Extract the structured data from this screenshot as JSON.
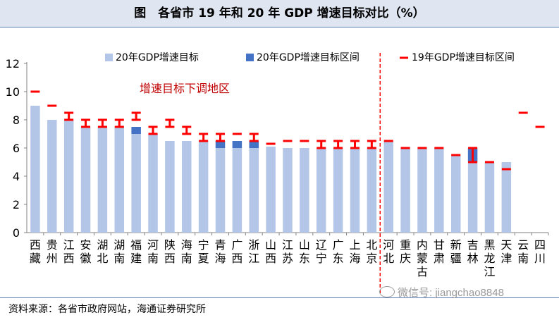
{
  "title": "图　各省市 19 年和 20 年 GDP 增速目标对比（%）",
  "source": "资料来源：各省市政府网站，海通证券研究所",
  "watermark": "微信号: jiangchao8848",
  "colors": {
    "bar": "#b4c6e7",
    "range20": "#4472c4",
    "range19": "#ff0000",
    "annot": "#c00000",
    "axis": "#808080"
  },
  "chart_data": {
    "type": "bar",
    "ylim": [
      0,
      12
    ],
    "yticks": [
      0,
      2,
      4,
      6,
      8,
      10,
      12
    ],
    "legend": [
      "20年GDP增速目标",
      "20年GDP增速目标区间",
      "19年GDP增速目标区间"
    ],
    "annotation": "增速目标下调地区",
    "categories": [
      {
        "name": "西藏",
        "chars": [
          "西",
          "藏"
        ],
        "target20": 9,
        "range20": null,
        "range19": [
          10,
          10
        ]
      },
      {
        "name": "贵州",
        "chars": [
          "贵",
          "州"
        ],
        "target20": 8,
        "range20": null,
        "range19": [
          9,
          9
        ]
      },
      {
        "name": "江西",
        "chars": [
          "江",
          "西"
        ],
        "target20": 8,
        "range20": null,
        "range19": [
          8,
          8.5
        ]
      },
      {
        "name": "安徽",
        "chars": [
          "安",
          "徽"
        ],
        "target20": 7.5,
        "range20": null,
        "range19": [
          7.5,
          8
        ]
      },
      {
        "name": "湖北",
        "chars": [
          "湖",
          "北"
        ],
        "target20": 7.5,
        "range20": null,
        "range19": [
          7.5,
          8
        ]
      },
      {
        "name": "湖南",
        "chars": [
          "湖",
          "南"
        ],
        "target20": 7.5,
        "range20": null,
        "range19": [
          7.5,
          8
        ]
      },
      {
        "name": "福建",
        "chars": [
          "福",
          "建"
        ],
        "target20": 7,
        "range20": [
          7,
          7.5
        ],
        "range19": [
          8,
          8.5
        ]
      },
      {
        "name": "河南",
        "chars": [
          "河",
          "南"
        ],
        "target20": 7,
        "range20": null,
        "range19": [
          7,
          7.5
        ]
      },
      {
        "name": "陕西",
        "chars": [
          "陕",
          "西"
        ],
        "target20": 6.5,
        "range20": null,
        "range19": [
          7.5,
          8
        ]
      },
      {
        "name": "海南",
        "chars": [
          "海",
          "南"
        ],
        "target20": 6.5,
        "range20": null,
        "range19": [
          7,
          7.5
        ]
      },
      {
        "name": "宁夏",
        "chars": [
          "宁",
          "夏"
        ],
        "target20": 6.5,
        "range20": null,
        "range19": [
          6.5,
          7
        ]
      },
      {
        "name": "青海",
        "chars": [
          "青",
          "海"
        ],
        "target20": 6,
        "range20": [
          6,
          6.5
        ],
        "range19": [
          6.5,
          7
        ]
      },
      {
        "name": "广西",
        "chars": [
          "广",
          "西"
        ],
        "target20": 6,
        "range20": [
          6,
          6.5
        ],
        "range19": [
          7,
          7
        ]
      },
      {
        "name": "浙江",
        "chars": [
          "浙",
          "江"
        ],
        "target20": 6,
        "range20": [
          6,
          6.5
        ],
        "range19": [
          6.5,
          7
        ]
      },
      {
        "name": "山西",
        "chars": [
          "山",
          "西"
        ],
        "target20": 6.1,
        "range20": null,
        "range19": [
          6.3,
          6.3
        ]
      },
      {
        "name": "江苏",
        "chars": [
          "江",
          "苏"
        ],
        "target20": 6,
        "range20": null,
        "range19": [
          6.5,
          6.5
        ]
      },
      {
        "name": "山东",
        "chars": [
          "山",
          "东"
        ],
        "target20": 6,
        "range20": null,
        "range19": [
          6.5,
          6.5
        ]
      },
      {
        "name": "辽宁",
        "chars": [
          "辽",
          "宁"
        ],
        "target20": 6,
        "range20": null,
        "range19": [
          6,
          6.5
        ]
      },
      {
        "name": "广东",
        "chars": [
          "广",
          "东"
        ],
        "target20": 6,
        "range20": null,
        "range19": [
          6,
          6.5
        ]
      },
      {
        "name": "上海",
        "chars": [
          "上",
          "海"
        ],
        "target20": 6,
        "range20": null,
        "range19": [
          6,
          6.5
        ]
      },
      {
        "name": "北京",
        "chars": [
          "北",
          "京"
        ],
        "target20": 6,
        "range20": null,
        "range19": [
          6,
          6.5
        ]
      },
      {
        "name": "河北",
        "chars": [
          "河",
          "北"
        ],
        "target20": 6.5,
        "range20": null,
        "range19": [
          6.5,
          6.5
        ]
      },
      {
        "name": "重庆",
        "chars": [
          "重",
          "庆"
        ],
        "target20": 6,
        "range20": null,
        "range19": [
          6,
          6
        ]
      },
      {
        "name": "内蒙古",
        "chars": [
          "内",
          "蒙",
          "古"
        ],
        "target20": 6,
        "range20": null,
        "range19": [
          6,
          6
        ]
      },
      {
        "name": "甘肃",
        "chars": [
          "甘",
          "肃"
        ],
        "target20": 6,
        "range20": null,
        "range19": [
          6,
          6
        ]
      },
      {
        "name": "新疆",
        "chars": [
          "新",
          "疆"
        ],
        "target20": 5.5,
        "range20": null,
        "range19": [
          5.5,
          5.5
        ]
      },
      {
        "name": "吉林",
        "chars": [
          "吉",
          "林"
        ],
        "target20": 5,
        "range20": [
          5,
          6
        ],
        "range19": [
          5,
          6
        ]
      },
      {
        "name": "黑龙江",
        "chars": [
          "黑",
          "龙",
          "江"
        ],
        "target20": 5,
        "range20": null,
        "range19": [
          5,
          5
        ]
      },
      {
        "name": "天津",
        "chars": [
          "天",
          "津"
        ],
        "target20": 5,
        "range20": null,
        "range19": [
          4.5,
          4.5
        ]
      },
      {
        "name": "云南",
        "chars": [
          "云",
          "南"
        ],
        "target20": null,
        "range20": null,
        "range19": [
          8.5,
          8.5
        ]
      },
      {
        "name": "四川",
        "chars": [
          "四",
          "川"
        ],
        "target20": null,
        "range20": null,
        "range19": [
          7.5,
          7.5
        ]
      }
    ]
  }
}
